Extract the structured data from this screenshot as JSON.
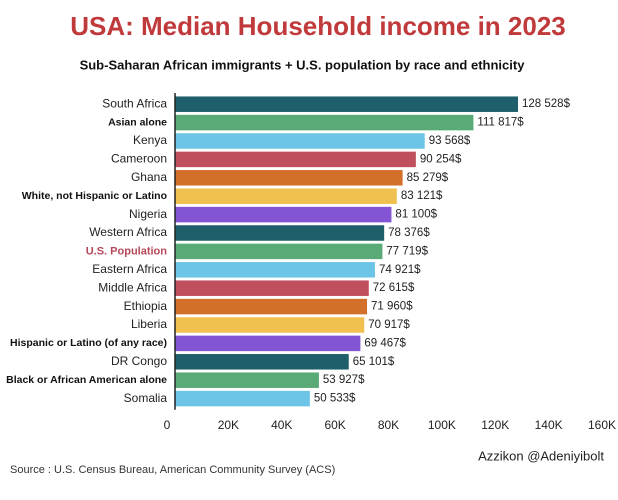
{
  "chart_data": {
    "type": "hbar",
    "title": "USA: Median Household income in 2023",
    "subtitle": "Sub-Saharan African immigrants + U.S. population by race and ethnicity",
    "categories": [
      "South Africa",
      "Asian alone",
      "Kenya",
      "Cameroon",
      "Ghana",
      "White, not Hispanic or Latino",
      "Nigeria",
      "Western Africa",
      "U.S. Population",
      "Eastern Africa",
      "Middle Africa",
      "Ethiopia",
      "Liberia",
      "Hispanic or Latino (of any race)",
      "DR Congo",
      "Black or African American alone",
      "Somalia"
    ],
    "label_styles": [
      "normal",
      "bold",
      "normal",
      "normal",
      "normal",
      "bold",
      "normal",
      "normal",
      "highlight",
      "normal",
      "normal",
      "normal",
      "normal",
      "bold",
      "normal",
      "bold",
      "normal"
    ],
    "values": [
      128528,
      111817,
      93568,
      90254,
      85279,
      83121,
      81100,
      78376,
      77719,
      74921,
      72615,
      71960,
      70917,
      69467,
      65101,
      53927,
      50533
    ],
    "value_labels": [
      "128 528$",
      "111 817$",
      "93 568$",
      "90 254$",
      "85 279$",
      "83 121$",
      "81 100$",
      "78 376$",
      "77 719$",
      "74 921$",
      "72 615$",
      "71 960$",
      "70 917$",
      "69 467$",
      "65 101$",
      "53 927$",
      "50 533$"
    ],
    "colors": [
      "#1f5f6b",
      "#5aaa78",
      "#6cc4e6",
      "#c04f5e",
      "#d2702a",
      "#f0c050",
      "#8355d4",
      "#1f5f6b",
      "#5aaa78",
      "#6cc4e6",
      "#c04f5e",
      "#d2702a",
      "#f0c050",
      "#8355d4",
      "#1f5f6b",
      "#5aaa78",
      "#6cc4e6"
    ],
    "xlim": [
      0,
      160000
    ],
    "xticks": [
      0,
      {
        "value": 20000,
        "label": "20K"
      },
      {
        "value": 40000,
        "label": "40K"
      },
      {
        "value": 60000,
        "label": "60K"
      },
      {
        "value": 80000,
        "label": "80K"
      },
      {
        "value": 100000,
        "label": "100K"
      },
      {
        "value": 120000,
        "label": "120K"
      },
      {
        "value": 140000,
        "label": "140K"
      },
      {
        "value": 160000,
        "label": "160K"
      }
    ],
    "credit": "Azzikon @Adeniyibolt",
    "source": "Source : U.S. Census Bureau, American Community Survey (ACS)"
  }
}
